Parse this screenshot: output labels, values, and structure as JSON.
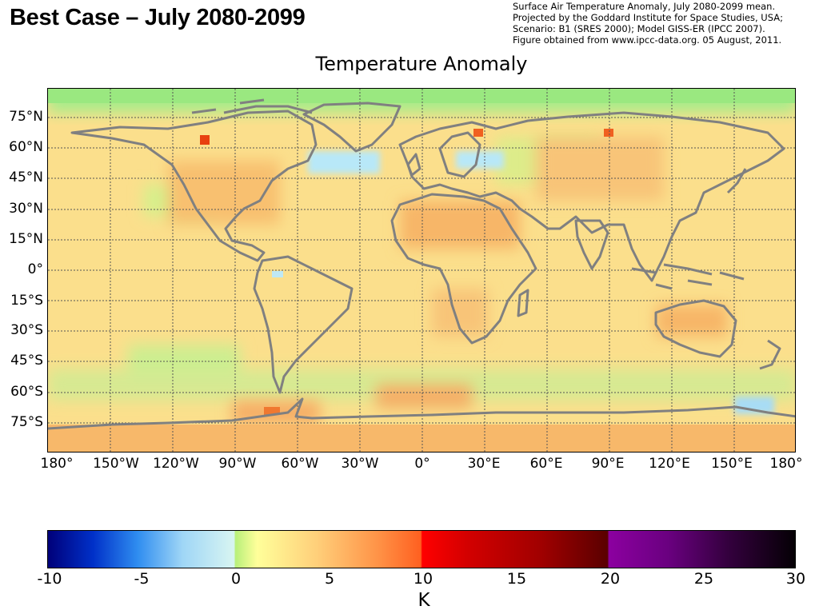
{
  "slide_title": "Best Case – July 2080-2099",
  "credits": [
    "Surface Air Temperature Anomaly, July 2080-2099 mean.",
    "Projected by the Goddard Institute for Space Studies, USA;",
    "Scenario: B1 (SRES 2000); Model GISS-ER (IPCC 2007).",
    "Figure obtained from www.ipcc-data.org. 05 August, 2011."
  ],
  "map": {
    "title": "Temperature Anomaly",
    "lat_labels": [
      "75°N",
      "60°N",
      "45°N",
      "30°N",
      "15°N",
      "0°",
      "15°S",
      "30°S",
      "45°S",
      "60°S",
      "75°S"
    ],
    "lon_labels": [
      "180°",
      "150°W",
      "120°W",
      "90°W",
      "60°W",
      "30°W",
      "0°",
      "30°E",
      "60°E",
      "90°E",
      "120°E",
      "150°E",
      "180°"
    ],
    "colors": {
      "ocean_base": "#fbdf8c",
      "land_outline": "#808080",
      "grid": "#555555"
    }
  },
  "colorbar": {
    "ticks": [
      "-10",
      "-5",
      "0",
      "5",
      "10",
      "15",
      "20",
      "25",
      "30"
    ],
    "unit": "K",
    "range": [
      -10,
      30
    ]
  }
}
